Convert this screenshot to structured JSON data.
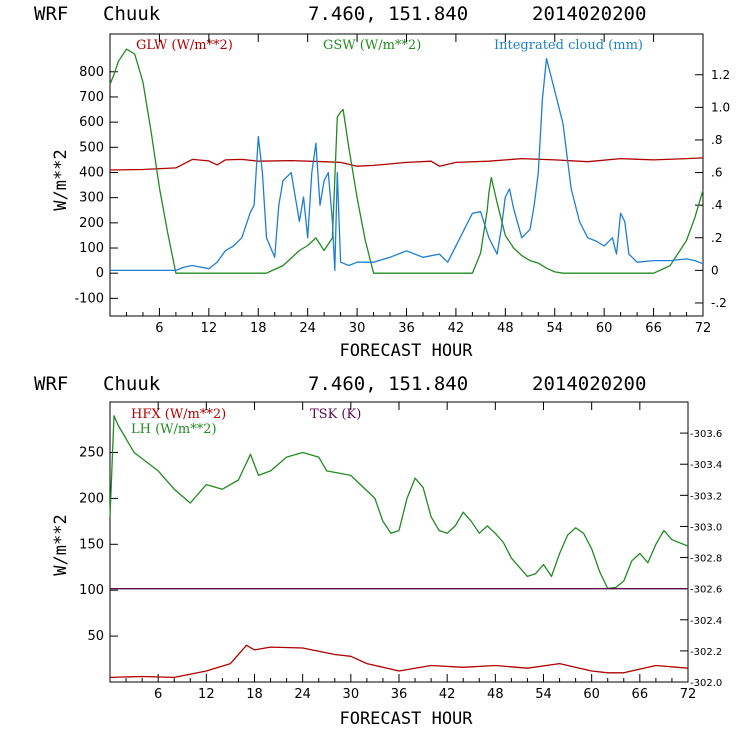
{
  "colors": {
    "red": "#b00000",
    "green": "#228b22",
    "blue": "#1e7fd0",
    "purple": "#5a0a4a",
    "axis": "#000000"
  },
  "chart_data": [
    {
      "type": "line",
      "header": {
        "model": "WRF",
        "station": "Chuuk",
        "coords": "7.460, 151.840",
        "date": "2014020200"
      },
      "xlabel": "FORECAST HOUR",
      "ylabel": "W/m**2",
      "xlim": [
        0,
        72
      ],
      "ylim": [
        -170,
        950
      ],
      "y2lim": [
        -0.28,
        1.45
      ],
      "x_ticks": [
        "6",
        "12",
        "18",
        "24",
        "30",
        "36",
        "42",
        "48",
        "54",
        "60",
        "66",
        "72"
      ],
      "y_ticks": [
        "-100",
        "0",
        "100",
        "200",
        "300",
        "400",
        "500",
        "600",
        "700",
        "800"
      ],
      "y2_ticks": [
        "-.2",
        "0",
        ".2",
        ".4",
        ".6",
        ".8",
        "1.0",
        "1.2"
      ],
      "series": [
        {
          "name": "GLW (W/m**2)",
          "axis": "left",
          "color": "#b00000",
          "x": [
            0,
            4,
            8,
            10,
            12,
            13,
            14,
            16,
            18,
            22,
            26,
            28,
            30,
            32,
            36,
            39,
            40,
            42,
            46,
            50,
            54,
            58,
            62,
            66,
            70,
            72
          ],
          "y": [
            410,
            412,
            418,
            452,
            446,
            430,
            450,
            452,
            445,
            447,
            443,
            440,
            425,
            428,
            440,
            445,
            425,
            440,
            445,
            455,
            450,
            443,
            455,
            450,
            455,
            458
          ]
        },
        {
          "name": "GSW (W/m**2)",
          "axis": "left",
          "color": "#228b22",
          "x": [
            0,
            0.5,
            1,
            2,
            3,
            4,
            5,
            6,
            7,
            8,
            9,
            16,
            19,
            20,
            21,
            22,
            23,
            24,
            25,
            26,
            27,
            27.6,
            28,
            28.3,
            29,
            30,
            31,
            32,
            40,
            44,
            45,
            45.8,
            46,
            46.3,
            47,
            48,
            49,
            50,
            51,
            52,
            53,
            54,
            55,
            56,
            64,
            66,
            68,
            70,
            71,
            72
          ],
          "y": [
            750,
            790,
            840,
            890,
            870,
            760,
            560,
            340,
            160,
            0,
            0,
            0,
            0,
            15,
            30,
            60,
            90,
            110,
            140,
            90,
            140,
            620,
            640,
            650,
            500,
            300,
            130,
            0,
            0,
            0,
            80,
            250,
            320,
            380,
            280,
            150,
            100,
            70,
            50,
            40,
            20,
            5,
            0,
            0,
            0,
            0,
            30,
            130,
            220,
            330
          ]
        },
        {
          "name": "Integrated cloud (mm)",
          "axis": "right",
          "color": "#1e7fd0",
          "x": [
            0,
            8,
            9,
            10,
            11,
            12,
            13,
            14,
            15,
            16,
            17,
            17.5,
            18,
            18.5,
            19,
            20,
            20.5,
            21,
            22,
            23,
            23.5,
            24,
            24.5,
            25,
            25.5,
            26,
            26.5,
            27,
            27.3,
            27.6,
            28,
            29,
            30,
            32,
            34,
            36,
            38,
            40,
            41,
            42,
            43,
            44,
            45,
            46,
            47,
            47.5,
            48,
            48.5,
            49,
            50,
            51,
            51.5,
            52,
            52.5,
            53,
            54,
            55,
            56,
            57,
            58,
            59,
            60,
            61,
            61.5,
            62,
            62.5,
            63,
            64,
            66,
            68,
            70,
            71,
            72
          ],
          "y": [
            0,
            0,
            0.02,
            0.03,
            0.02,
            0.01,
            0.05,
            0.12,
            0.15,
            0.2,
            0.35,
            0.4,
            0.82,
            0.6,
            0.2,
            0.08,
            0.4,
            0.55,
            0.6,
            0.3,
            0.45,
            0.2,
            0.6,
            0.78,
            0.4,
            0.55,
            0.6,
            0.3,
            0.0,
            0.6,
            0.05,
            0.03,
            0.05,
            0.05,
            0.08,
            0.12,
            0.08,
            0.1,
            0.05,
            0.15,
            0.25,
            0.35,
            0.36,
            0.2,
            0.1,
            0.25,
            0.45,
            0.5,
            0.38,
            0.2,
            0.25,
            0.4,
            0.6,
            1.05,
            1.3,
            1.1,
            0.9,
            0.5,
            0.3,
            0.2,
            0.18,
            0.15,
            0.2,
            0.1,
            0.35,
            0.3,
            0.1,
            0.05,
            0.06,
            0.06,
            0.07,
            0.06,
            0.04
          ]
        }
      ]
    },
    {
      "type": "line",
      "header": {
        "model": "WRF",
        "station": "Chuuk",
        "coords": "7.460, 151.840",
        "date": "2014020200"
      },
      "xlabel": "FORECAST HOUR",
      "ylabel": "W/m**2",
      "xlim": [
        0,
        72
      ],
      "ylim": [
        0,
        305
      ],
      "y2lim": [
        302.0,
        303.8
      ],
      "x_ticks": [
        "6",
        "12",
        "18",
        "24",
        "30",
        "36",
        "42",
        "48",
        "54",
        "60",
        "66",
        "72"
      ],
      "y_ticks": [
        "50",
        "100",
        "150",
        "200",
        "250"
      ],
      "y2_ticks": [
        "302.0",
        "302.2",
        "302.4",
        "302.6",
        "302.8",
        "303.0",
        "303.2",
        "303.4",
        "303.6"
      ],
      "series": [
        {
          "name": "HFX (W/m**2)",
          "axis": "left",
          "color": "#b00000",
          "x": [
            0,
            4,
            8,
            12,
            15,
            17,
            18,
            20,
            24,
            28,
            30,
            32,
            36,
            40,
            44,
            48,
            52,
            56,
            60,
            62,
            64,
            66,
            68,
            72
          ],
          "y": [
            5,
            6,
            5,
            12,
            20,
            40,
            35,
            38,
            37,
            30,
            28,
            20,
            12,
            18,
            16,
            18,
            15,
            20,
            12,
            10,
            10,
            14,
            18,
            15
          ]
        },
        {
          "name": "LH (W/m**2)",
          "axis": "left",
          "color": "#228b22",
          "x": [
            0,
            0.5,
            1,
            3,
            6,
            8,
            10,
            12,
            14,
            16,
            17.5,
            18.5,
            20,
            22,
            24,
            26,
            27,
            30,
            33,
            34,
            35,
            36,
            37,
            38,
            39,
            40,
            41,
            42,
            43,
            44,
            45,
            46,
            47,
            48,
            49,
            50,
            52,
            53,
            54,
            55,
            56,
            57,
            58,
            59,
            60,
            61,
            62,
            63,
            64,
            65,
            66,
            67,
            68,
            69,
            70,
            72
          ],
          "y": [
            180,
            290,
            280,
            250,
            230,
            210,
            195,
            215,
            210,
            220,
            248,
            225,
            230,
            245,
            250,
            245,
            230,
            225,
            200,
            175,
            162,
            165,
            200,
            222,
            212,
            180,
            165,
            162,
            170,
            185,
            175,
            162,
            170,
            162,
            152,
            135,
            115,
            118,
            128,
            115,
            140,
            160,
            168,
            162,
            145,
            120,
            102,
            103,
            110,
            132,
            140,
            130,
            150,
            165,
            155,
            148
          ]
        },
        {
          "name": "TSK (K)",
          "axis": "right",
          "color": "#5a0a4a",
          "x": [
            0,
            72
          ],
          "y": [
            302.6,
            302.6
          ]
        }
      ]
    }
  ]
}
